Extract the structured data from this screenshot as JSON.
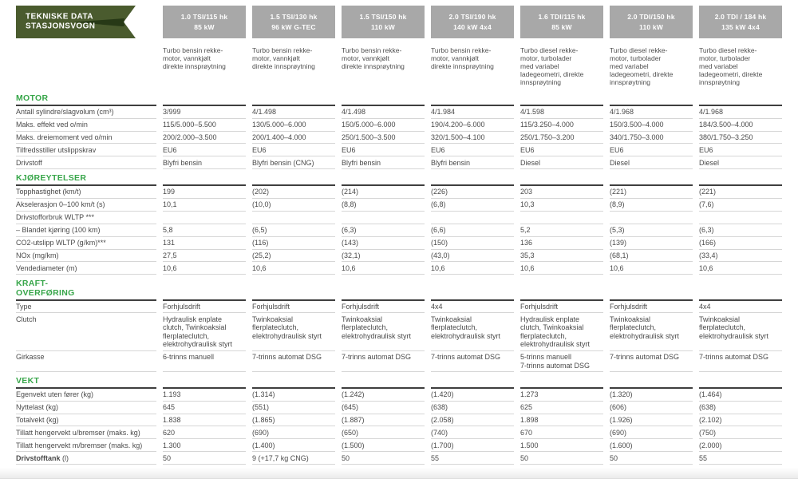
{
  "banner": {
    "line1": "TEKNISKE DATA",
    "line2": "STASJONSVOGN"
  },
  "colors": {
    "banner_green": "#4a5b2e",
    "banner_fold_dark": "#273916",
    "column_header_gray": "#a8a8a8",
    "section_heading_green": "#38a64a",
    "thick_rule": "#3f3f3f",
    "thin_rule": "#d6d6d6"
  },
  "columns": [
    {
      "title": "1.0 TSI/115 hk\n85 kW",
      "description": "Turbo bensin rekke-\nmotor, vannkjølt\ndirekte innsprøytning"
    },
    {
      "title": "1.5 TSI/130 hk\n96 kW G-TEC",
      "description": "Turbo bensin rekke-\nmotor, vannkjølt\ndirekte innsprøytning"
    },
    {
      "title": "1.5 TSI/150 hk\n110 kW",
      "description": "Turbo bensin rekke-\nmotor, vannkjølt\ndirekte innsprøytning"
    },
    {
      "title": "2.0 TSI/190 hk\n140 kW 4x4",
      "description": "Turbo bensin rekke-\nmotor, vannkjølt\ndirekte innsprøytning"
    },
    {
      "title": "1.6 TDI/115 hk\n85 kW",
      "description": "Turbo diesel rekke-\nmotor, turbolader\nmed variabel\nladegeometri, direkte\ninnsprøytning"
    },
    {
      "title": "2.0 TDI/150 hk\n110 kW",
      "description": "Turbo diesel rekke-\nmotor, turbolader\nmed variabel\nladegeometri, direkte\ninnsprøytning"
    },
    {
      "title": "2.0 TDI / 184 hk\n135 kW 4x4",
      "description": "Turbo diesel rekke-\nmotor, turbolader\nmed variabel\nladegeometri, direkte\ninnsprøytning"
    }
  ],
  "sections": [
    {
      "title": "MOTOR",
      "rows": [
        {
          "label": "Antall sylindre/slagvolum (cm³)",
          "values": [
            "3/999",
            "4/1.498",
            "4/1.498",
            "4/1.984",
            "4/1.598",
            "4/1.968",
            "4/1.968"
          ]
        },
        {
          "label": "Maks. effekt ved o/min",
          "values": [
            "115/5.000–5.500",
            "130/5.000–6.000",
            "150/5.000–6.000",
            "190/4.200–6.000",
            "115/3.250–4.000",
            "150/3.500–4.000",
            "184/3.500–4.000"
          ]
        },
        {
          "label": "Maks. dreiemoment ved o/min",
          "values": [
            "200/2.000–3.500",
            "200/1.400–4.000",
            "250/1.500–3.500",
            "320/1.500–4.100",
            "250/1.750–3.200",
            "340/1.750–3.000",
            "380/1.750–3.250"
          ]
        },
        {
          "label": "Tilfredsstiller utslippskrav",
          "values": [
            "EU6",
            "EU6",
            "EU6",
            "EU6",
            "EU6",
            "EU6",
            "EU6"
          ]
        },
        {
          "label": "Drivstoff",
          "values": [
            "Blyfri bensin",
            "Blyfri bensin (CNG)",
            "Blyfri bensin",
            "Blyfri bensin",
            "Diesel",
            "Diesel",
            "Diesel"
          ]
        }
      ]
    },
    {
      "title": "KJØREYTELSER",
      "rows": [
        {
          "label": "Topphastighet (km/t)",
          "values": [
            "199",
            "(202)",
            "(214)",
            "(226)",
            "203",
            "(221)",
            "(221)"
          ]
        },
        {
          "label": "Akselerasjon 0–100 km/t (s)",
          "values": [
            "10,1",
            "(10,0)",
            "(8,8)",
            "(6,8)",
            "10,3",
            "(8,9)",
            "(7,6)"
          ]
        },
        {
          "label": "Drivstofforbruk WLTP ***",
          "values": [
            "",
            "",
            "",
            "",
            "",
            "",
            ""
          ]
        },
        {
          "label": "– Blandet kjøring (100 km)",
          "values": [
            "5,8",
            "(6,5)",
            "(6,3)",
            "(6,6)",
            "5,2",
            "(5,3)",
            "(6,3)"
          ]
        },
        {
          "label": "CO2-utslipp WLTP (g/km)***",
          "values": [
            "131",
            "(116)",
            "(143)",
            "(150)",
            "136",
            "(139)",
            "(166)"
          ]
        },
        {
          "label": "NOx (mg/km)",
          "values": [
            "27,5",
            "(25,2)",
            "(32,1)",
            "(43,0)",
            "35,3",
            "(68,1)",
            "(33,4)"
          ]
        },
        {
          "label": "Vendediameter (m)",
          "values": [
            "10,6",
            "10,6",
            "10,6",
            "10,6",
            "10,6",
            "10,6",
            "10,6"
          ]
        }
      ]
    },
    {
      "title": "KRAFT-\nOVERFØRING",
      "rows": [
        {
          "label": "Type",
          "values": [
            "Forhjulsdrift",
            "Forhjulsdrift",
            "Forhjulsdrift",
            "4x4",
            "Forhjulsdrift",
            "Forhjulsdrift",
            "4x4"
          ]
        },
        {
          "label": "Clutch",
          "values": [
            "Hydraulisk enplate\nclutch, Twinkoaksial\nflerplateclutch,\nelektrohydraulisk styrt",
            "Twinkoaksial flerplateclutch,\nelektrohydraulisk styrt",
            "Twinkoaksial flerplateclutch,\nelektrohydraulisk styrt",
            "Twinkoaksial flerplateclutch,\nelektrohydraulisk styrt",
            "Hydraulisk enplate\nclutch, Twinkoaksial\nflerplateclutch,\nelektrohydraulisk styrt",
            "Twinkoaksial flerplateclutch,\nelektrohydraulisk styrt",
            "Twinkoaksial flerplateclutch,\nelektrohydraulisk styrt"
          ]
        },
        {
          "label": "Girkasse",
          "values": [
            "6-trinns manuell",
            "7-trinns automat DSG",
            "7-trinns automat DSG",
            "7-trinns automat DSG",
            "5-trinns manuell\n7-trinns automat DSG",
            "7-trinns automat DSG",
            "7-trinns automat DSG"
          ]
        }
      ]
    },
    {
      "title": "VEKT",
      "rows": [
        {
          "label": "Egenvekt uten fører (kg)",
          "values": [
            "1.193",
            "(1.314)",
            "(1.242)",
            "(1.420)",
            "1.273",
            "(1.320)",
            "(1.464)"
          ]
        },
        {
          "label": "Nyttelast (kg)",
          "values": [
            "645",
            "(551)",
            "(645)",
            "(638)",
            "625",
            "(606)",
            "(638)"
          ]
        },
        {
          "label": "Totalvekt (kg)",
          "values": [
            "1.838",
            "(1.865)",
            "(1.887)",
            "(2.058)",
            "1.898",
            "(1.926)",
            "(2.102)"
          ]
        },
        {
          "label": "Tillatt hengervekt u/bremser (maks. kg)",
          "values": [
            "620",
            "(690)",
            "(650)",
            "(740)",
            "670",
            "(690)",
            "(750)"
          ]
        },
        {
          "label": "Tillatt hengervekt m/bremser (maks. kg)",
          "values": [
            "1.300",
            "(1.400)",
            "(1.500)",
            "(1.700)",
            "1.500",
            "(1.600)",
            "(2.000)"
          ]
        },
        {
          "label_bold": "Drivstofftank",
          "label": " (l)",
          "values": [
            "50",
            "9 (+17,7 kg CNG)",
            "50",
            "55",
            "50",
            "50",
            "55"
          ]
        }
      ]
    }
  ]
}
